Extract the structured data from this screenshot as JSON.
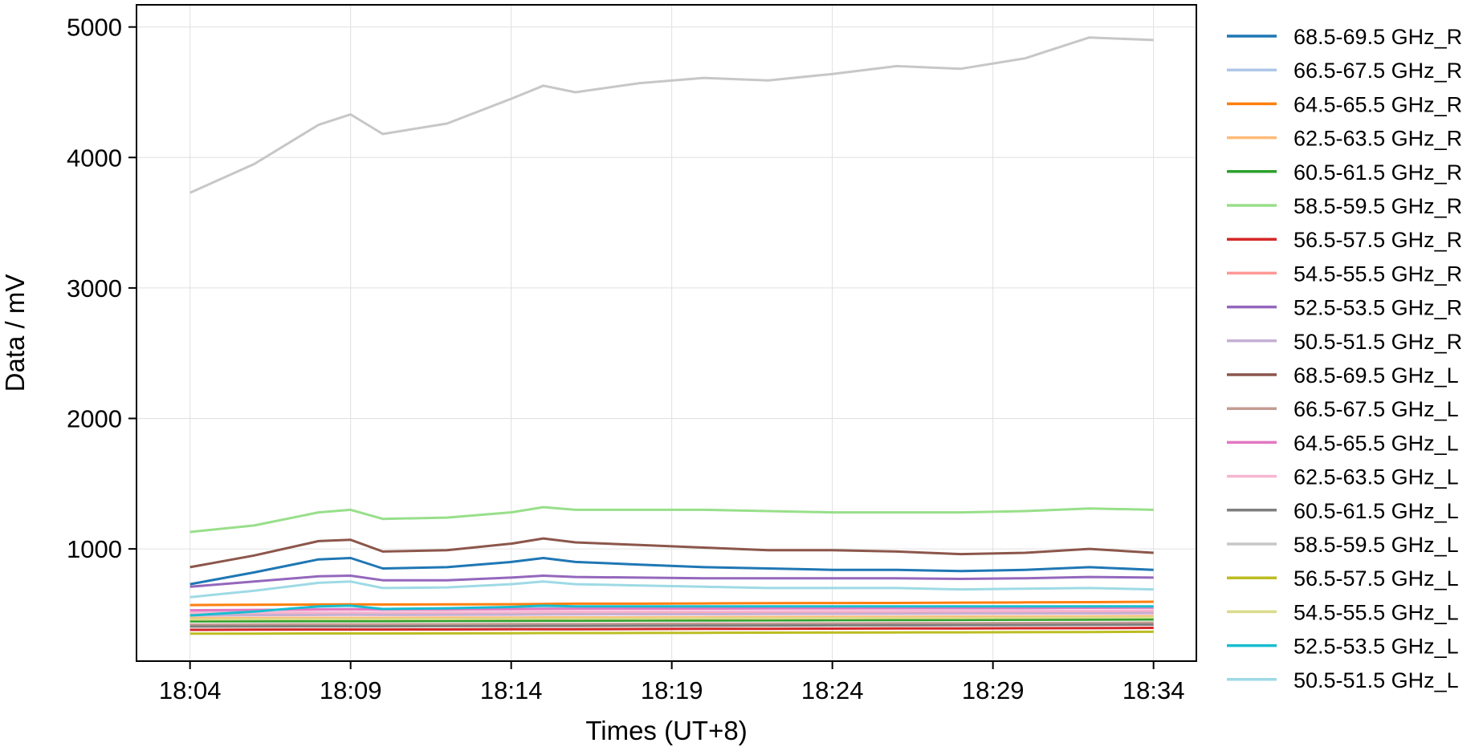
{
  "chart_data": {
    "type": "line",
    "xlabel": "Times (UT+8)",
    "ylabel": "Data / mV",
    "x_ticks": [
      "18:04",
      "18:09",
      "18:14",
      "18:19",
      "18:24",
      "18:29",
      "18:34"
    ],
    "y_ticks": [
      "1000",
      "2000",
      "3000",
      "4000",
      "5000"
    ],
    "xlim": [
      "18:02:20",
      "18:35:20"
    ],
    "ylim": [
      140,
      5170
    ],
    "grid": true,
    "legend_position": "outside-right",
    "x_points": [
      "18:04",
      "18:06",
      "18:08",
      "18:09",
      "18:10",
      "18:12",
      "18:14",
      "18:15",
      "18:16",
      "18:18",
      "18:20",
      "18:22",
      "18:24",
      "18:26",
      "18:28",
      "18:30",
      "18:32",
      "18:34"
    ],
    "series": [
      {
        "name": "68.5-69.5 GHz_R",
        "color": "#1f77b4",
        "values": [
          730,
          820,
          920,
          930,
          850,
          860,
          900,
          930,
          900,
          880,
          860,
          850,
          840,
          840,
          830,
          840,
          860,
          840
        ]
      },
      {
        "name": "66.5-67.5 GHz_R",
        "color": "#aec7e8",
        "values": [
          520,
          530,
          540,
          540,
          535,
          535,
          540,
          545,
          545,
          545,
          545,
          545,
          545,
          545,
          545,
          545,
          550,
          550
        ]
      },
      {
        "name": "64.5-65.5 GHz_R",
        "color": "#ff7f0e",
        "values": [
          570,
          572,
          574,
          575,
          574,
          575,
          576,
          578,
          580,
          580,
          582,
          584,
          585,
          586,
          588,
          590,
          592,
          595
        ]
      },
      {
        "name": "62.5-63.5 GHz_R",
        "color": "#ffbb78",
        "values": [
          470,
          471,
          472,
          472,
          472,
          473,
          474,
          475,
          475,
          476,
          477,
          478,
          479,
          480,
          481,
          482,
          483,
          485
        ]
      },
      {
        "name": "60.5-61.5 GHz_R",
        "color": "#2ca02c",
        "values": [
          445,
          446,
          447,
          447,
          447,
          448,
          449,
          450,
          450,
          451,
          452,
          453,
          454,
          455,
          456,
          457,
          458,
          460
        ]
      },
      {
        "name": "58.5-59.5 GHz_R",
        "color": "#98df8a",
        "values": [
          1130,
          1180,
          1280,
          1300,
          1230,
          1240,
          1280,
          1320,
          1300,
          1300,
          1300,
          1290,
          1280,
          1280,
          1280,
          1290,
          1310,
          1300
        ]
      },
      {
        "name": "56.5-57.5 GHz_R",
        "color": "#d62728",
        "values": [
          380,
          381,
          382,
          382,
          382,
          383,
          384,
          385,
          385,
          386,
          387,
          388,
          389,
          390,
          391,
          392,
          393,
          395
        ]
      },
      {
        "name": "54.5-55.5 GHz_R",
        "color": "#ff9896",
        "values": [
          500,
          503,
          506,
          507,
          506,
          508,
          510,
          512,
          513,
          514,
          515,
          516,
          517,
          518,
          519,
          520,
          521,
          522
        ]
      },
      {
        "name": "52.5-53.5 GHz_R",
        "color": "#9467bd",
        "values": [
          710,
          750,
          790,
          795,
          760,
          760,
          780,
          795,
          785,
          780,
          775,
          775,
          775,
          775,
          770,
          775,
          785,
          780
        ]
      },
      {
        "name": "50.5-51.5 GHz_R",
        "color": "#c5b0d5",
        "values": [
          490,
          492,
          494,
          495,
          494,
          495,
          496,
          497,
          498,
          499,
          500,
          501,
          502,
          503,
          504,
          505,
          506,
          507
        ]
      },
      {
        "name": "68.5-69.5 GHz_L",
        "color": "#8c564b",
        "values": [
          860,
          950,
          1060,
          1070,
          980,
          990,
          1040,
          1080,
          1050,
          1030,
          1010,
          990,
          990,
          980,
          960,
          970,
          1000,
          970
        ]
      },
      {
        "name": "66.5-67.5 GHz_L",
        "color": "#c49c94",
        "values": [
          420,
          421,
          422,
          422,
          422,
          423,
          424,
          425,
          425,
          426,
          427,
          428,
          429,
          430,
          431,
          432,
          433,
          435
        ]
      },
      {
        "name": "64.5-65.5 GHz_L",
        "color": "#e377c2",
        "values": [
          530,
          533,
          536,
          537,
          536,
          537,
          538,
          540,
          541,
          542,
          543,
          544,
          545,
          546,
          547,
          548,
          549,
          550
        ]
      },
      {
        "name": "62.5-63.5 GHz_L",
        "color": "#f7b6d2",
        "values": [
          510,
          512,
          514,
          515,
          514,
          515,
          516,
          518,
          519,
          520,
          521,
          522,
          523,
          524,
          525,
          526,
          527,
          528
        ]
      },
      {
        "name": "60.5-61.5 GHz_L",
        "color": "#7f7f7f",
        "values": [
          405,
          406,
          407,
          407,
          407,
          408,
          409,
          410,
          410,
          411,
          412,
          413,
          414,
          415,
          416,
          417,
          418,
          420
        ]
      },
      {
        "name": "58.5-59.5 GHz_L",
        "color": "#c7c7c7",
        "values": [
          3730,
          3950,
          4250,
          4330,
          4180,
          4260,
          4450,
          4550,
          4500,
          4570,
          4610,
          4590,
          4640,
          4700,
          4680,
          4760,
          4920,
          4900
        ]
      },
      {
        "name": "56.5-57.5 GHz_L",
        "color": "#bcbd22",
        "values": [
          350,
          351,
          352,
          352,
          352,
          353,
          354,
          355,
          355,
          356,
          357,
          358,
          359,
          360,
          361,
          362,
          363,
          365
        ]
      },
      {
        "name": "54.5-55.5 GHz_L",
        "color": "#dbdb8d",
        "values": [
          460,
          461,
          462,
          462,
          462,
          463,
          464,
          465,
          465,
          466,
          467,
          468,
          469,
          470,
          471,
          472,
          473,
          475
        ]
      },
      {
        "name": "52.5-53.5 GHz_L",
        "color": "#17becf",
        "values": [
          490,
          520,
          560,
          565,
          540,
          545,
          555,
          565,
          560,
          560,
          560,
          560,
          560,
          560,
          560,
          560,
          560,
          560
        ]
      },
      {
        "name": "50.5-51.5 GHz_L",
        "color": "#9edae5",
        "values": [
          630,
          680,
          740,
          750,
          700,
          705,
          730,
          750,
          730,
          720,
          710,
          700,
          700,
          700,
          690,
          695,
          700,
          690
        ]
      }
    ]
  }
}
